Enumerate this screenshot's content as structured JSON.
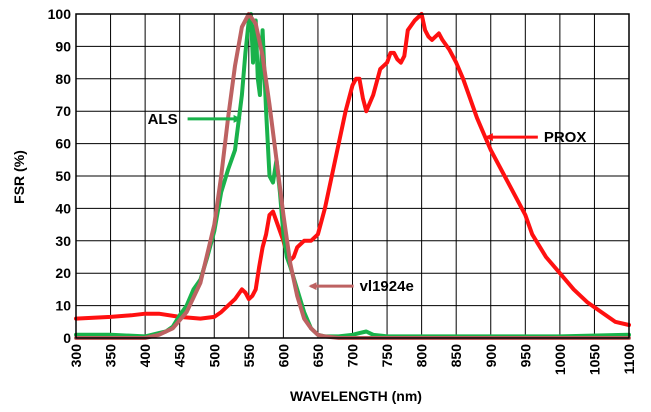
{
  "chart_data": {
    "type": "line",
    "xlabel": "WAVELENGTH (nm)",
    "ylabel": "FSR (%)",
    "xlim": [
      300,
      1100
    ],
    "ylim": [
      0,
      100
    ],
    "grid": true,
    "x_ticks": [
      300,
      350,
      400,
      450,
      500,
      550,
      600,
      650,
      700,
      750,
      800,
      850,
      900,
      950,
      1000,
      1050,
      1100
    ],
    "y_ticks": [
      0,
      10,
      20,
      30,
      40,
      50,
      60,
      70,
      80,
      90,
      100
    ],
    "colors": {
      "als": "#19b24b",
      "prox": "#ff1010",
      "vl1924e": "#bd6262"
    },
    "annotations": [
      {
        "text": "ALS",
        "series": "ALS",
        "x": 541,
        "y": 67
      },
      {
        "text": "PROX",
        "series": "PROX",
        "x": 890,
        "y": 62
      },
      {
        "text": "vl1924e",
        "series": "vl1924e",
        "x": 635,
        "y": 16
      }
    ],
    "series": [
      {
        "key": "als",
        "x": [
          300,
          350,
          400,
          420,
          430,
          440,
          450,
          460,
          470,
          480,
          490,
          500,
          510,
          520,
          530,
          540,
          545,
          550,
          553,
          556,
          560,
          563,
          566,
          570,
          575,
          580,
          585,
          590,
          595,
          600,
          605,
          610,
          620,
          630,
          640,
          650,
          660,
          680,
          700,
          710,
          720,
          730,
          750,
          800,
          850,
          900,
          1000,
          1100
        ],
        "y": [
          1,
          1,
          0.5,
          1.5,
          2,
          3.5,
          7,
          10,
          15,
          18,
          25,
          33,
          45,
          52,
          58,
          75,
          88,
          98,
          100,
          85,
          98,
          80,
          75,
          95,
          70,
          50,
          48,
          55,
          45,
          32,
          25,
          22,
          15,
          8,
          3,
          1,
          0.5,
          0.5,
          1,
          1.5,
          2,
          1,
          0.5,
          0.5,
          0.5,
          0.5,
          0.5,
          1
        ]
      },
      {
        "key": "prox",
        "x": [
          300,
          350,
          380,
          400,
          420,
          450,
          480,
          500,
          510,
          520,
          530,
          540,
          545,
          550,
          555,
          560,
          565,
          570,
          575,
          580,
          585,
          590,
          600,
          605,
          610,
          615,
          620,
          630,
          640,
          650,
          660,
          670,
          680,
          690,
          700,
          705,
          710,
          715,
          720,
          730,
          740,
          750,
          755,
          760,
          765,
          770,
          775,
          780,
          790,
          800,
          805,
          810,
          815,
          820,
          825,
          830,
          840,
          850,
          860,
          870,
          880,
          890,
          900,
          920,
          940,
          950,
          960,
          980,
          1000,
          1020,
          1040,
          1060,
          1080,
          1100
        ],
        "y": [
          6,
          6.5,
          7,
          7.5,
          7.5,
          6.5,
          6,
          6.5,
          8,
          10,
          12,
          15,
          14,
          12,
          13,
          15,
          22,
          28,
          32,
          38,
          39,
          36,
          30,
          26,
          24,
          25,
          28,
          30,
          30,
          32,
          40,
          50,
          60,
          70,
          78,
          80,
          80,
          74,
          70,
          75,
          83,
          85,
          88,
          88,
          86,
          85,
          87,
          95,
          98,
          100,
          95,
          93,
          92,
          93,
          94,
          92,
          89,
          85,
          80,
          74,
          68,
          63,
          58,
          50,
          42,
          38,
          32,
          25,
          20,
          15,
          11,
          8,
          5,
          4
        ]
      },
      {
        "key": "vl1924e",
        "x": [
          300,
          400,
          420,
          440,
          460,
          480,
          500,
          510,
          520,
          530,
          540,
          550,
          560,
          570,
          580,
          590,
          600,
          610,
          620,
          630,
          640,
          650,
          660,
          680,
          700,
          800,
          1100
        ],
        "y": [
          0,
          0,
          1,
          3,
          8,
          17,
          35,
          50,
          68,
          84,
          96,
          100,
          97,
          87,
          72,
          55,
          38,
          23,
          13,
          6,
          3,
          1,
          0.5,
          0,
          0,
          0,
          0
        ]
      }
    ]
  }
}
